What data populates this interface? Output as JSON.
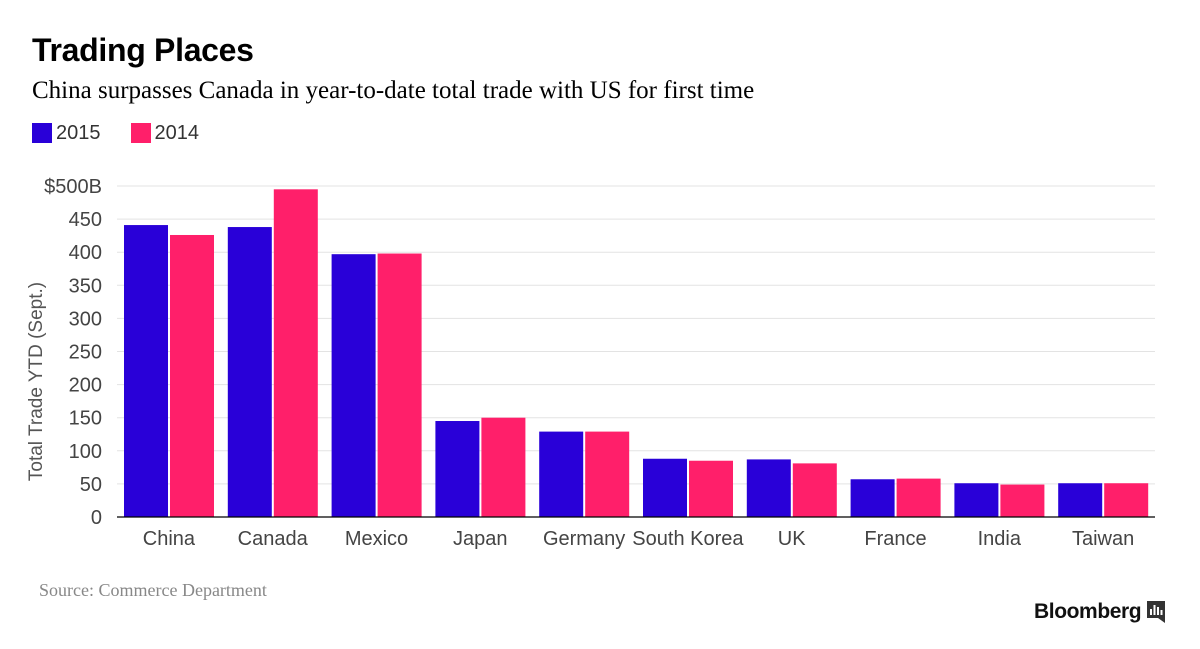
{
  "header": {
    "title": "Trading Places",
    "subtitle": "China surpasses Canada in year-to-date total trade with US for first time"
  },
  "legend": [
    {
      "label": "2015",
      "color": "#2900d8"
    },
    {
      "label": "2014",
      "color": "#ff1f6a"
    }
  ],
  "chart_data": {
    "type": "bar",
    "title": "Trading Places",
    "subtitle": "China surpasses Canada in year-to-date total trade with US for first time",
    "xlabel": "",
    "ylabel": "Total Trade YTD (Sept.)",
    "ylim": [
      0,
      500
    ],
    "yticks": [
      {
        "value": 0,
        "label": "0"
      },
      {
        "value": 50,
        "label": "50"
      },
      {
        "value": 100,
        "label": "100"
      },
      {
        "value": 150,
        "label": "150"
      },
      {
        "value": 200,
        "label": "200"
      },
      {
        "value": 250,
        "label": "250"
      },
      {
        "value": 300,
        "label": "300"
      },
      {
        "value": 350,
        "label": "350"
      },
      {
        "value": 400,
        "label": "400"
      },
      {
        "value": 450,
        "label": "450"
      },
      {
        "value": 500,
        "label": "$500B"
      }
    ],
    "grid": true,
    "legend_position": "top-left",
    "categories": [
      "China",
      "Canada",
      "Mexico",
      "Japan",
      "Germany",
      "South Korea",
      "UK",
      "France",
      "India",
      "Taiwan"
    ],
    "series": [
      {
        "name": "2015",
        "color": "#2900d8",
        "values": [
          441,
          438,
          397,
          145,
          129,
          88,
          87,
          57,
          51,
          51
        ]
      },
      {
        "name": "2014",
        "color": "#ff1f6a",
        "values": [
          426,
          495,
          398,
          150,
          129,
          85,
          81,
          58,
          49,
          51
        ]
      }
    ]
  },
  "footer": {
    "source": "Source: Commerce Department",
    "brand": "Bloomberg",
    "brand_icon": "bloomberg-terminal-icon"
  }
}
